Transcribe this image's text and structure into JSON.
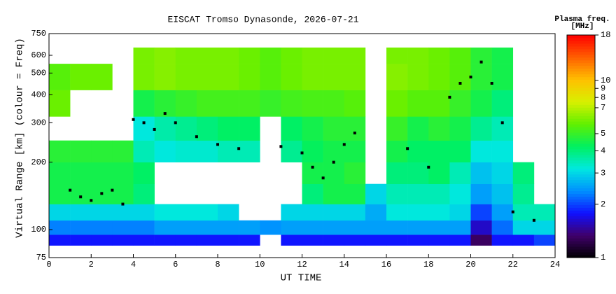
{
  "chart_data": {
    "type": "heatmap",
    "title": "EISCAT Tromso Dynasonde, 2026-07-21",
    "x_label": "UT TIME",
    "y_label": "Virtual Range [km] (colour = Freq)",
    "colorbar_title": [
      "Plasma freq.",
      "[MHz]"
    ],
    "xlim": [
      0,
      24
    ],
    "xticks": [
      0,
      2,
      4,
      6,
      8,
      10,
      12,
      14,
      16,
      18,
      20,
      22,
      24
    ],
    "ylim": [
      75,
      750
    ],
    "yticks": [
      75,
      100,
      200,
      300,
      400,
      500,
      600,
      750
    ],
    "log_y": true,
    "clim": [
      1,
      18
    ],
    "cticks": [
      1,
      2,
      3,
      4,
      5,
      7,
      8,
      9,
      10,
      18
    ],
    "log_c": true,
    "colormap": [
      "#000000",
      "#40006a",
      "#1010ff",
      "#0090ff",
      "#00e8e0",
      "#00f060",
      "#60f000",
      "#d8f000",
      "#ffc000",
      "#ff6000",
      "#ff0000"
    ],
    "x_edges": [
      0,
      1,
      2,
      3,
      4,
      5,
      6,
      7,
      8,
      9,
      10,
      11,
      12,
      13,
      14,
      15,
      16,
      17,
      18,
      19,
      20,
      21,
      22,
      23,
      24
    ],
    "y_edges": [
      85,
      95,
      110,
      130,
      160,
      200,
      250,
      320,
      420,
      550,
      650
    ],
    "z": [
      [
        1.8,
        1.8,
        1.8,
        1.8,
        1.8,
        1.8,
        1.8,
        1.8,
        1.8,
        1.8,
        null,
        1.8,
        1.8,
        1.8,
        1.8,
        1.8,
        1.8,
        1.8,
        1.8,
        1.8,
        1.3,
        1.8,
        1.8,
        2.0
      ],
      [
        2.3,
        2.3,
        2.3,
        2.3,
        2.3,
        2.5,
        2.5,
        2.5,
        2.5,
        2.5,
        2.4,
        2.5,
        2.5,
        2.5,
        2.5,
        2.5,
        2.5,
        2.5,
        2.5,
        2.5,
        1.6,
        2.2,
        3.0,
        3.0
      ],
      [
        3.0,
        3.0,
        3.0,
        3.0,
        3.0,
        3.2,
        3.2,
        3.2,
        3.0,
        null,
        null,
        3.0,
        3.0,
        3.0,
        3.0,
        2.6,
        3.2,
        3.2,
        3.2,
        3.0,
        2.0,
        2.5,
        3.5,
        3.5
      ],
      [
        4.5,
        4.5,
        4.5,
        4.5,
        4.0,
        null,
        null,
        null,
        null,
        null,
        null,
        null,
        4.0,
        4.5,
        4.5,
        3.0,
        3.5,
        3.5,
        3.5,
        3.2,
        2.5,
        2.8,
        3.8,
        null
      ],
      [
        4.5,
        4.5,
        4.5,
        4.5,
        4.2,
        null,
        null,
        null,
        null,
        null,
        null,
        null,
        4.5,
        4.5,
        4.8,
        null,
        4.0,
        4.0,
        4.2,
        3.5,
        2.8,
        3.0,
        4.0,
        null
      ],
      [
        4.8,
        4.8,
        4.8,
        4.8,
        3.5,
        3.2,
        3.3,
        3.3,
        3.5,
        3.5,
        null,
        3.8,
        4.3,
        4.5,
        4.5,
        null,
        4.5,
        4.2,
        4.2,
        4.2,
        3.2,
        3.2,
        null,
        null
      ],
      [
        null,
        null,
        null,
        null,
        3.2,
        3.6,
        3.8,
        4.0,
        4.2,
        4.2,
        null,
        4.2,
        4.5,
        4.8,
        4.8,
        null,
        5.0,
        4.5,
        4.8,
        4.5,
        3.8,
        3.5,
        null,
        null
      ],
      [
        5.8,
        null,
        null,
        null,
        4.5,
        4.8,
        5.0,
        5.2,
        5.2,
        5.2,
        5.0,
        5.2,
        5.3,
        5.3,
        5.5,
        null,
        5.8,
        5.5,
        5.5,
        5.0,
        4.5,
        4.0,
        null,
        null
      ],
      [
        5.5,
        5.8,
        5.8,
        null,
        6.0,
        6.2,
        6.0,
        6.0,
        6.0,
        5.8,
        5.5,
        5.8,
        6.0,
        6.0,
        6.0,
        null,
        6.2,
        6.0,
        5.8,
        5.5,
        4.8,
        4.5,
        null,
        null
      ],
      [
        null,
        null,
        null,
        null,
        6.0,
        6.2,
        6.0,
        6.0,
        6.0,
        5.8,
        5.5,
        5.8,
        6.0,
        6.0,
        6.0,
        null,
        6.0,
        6.0,
        5.8,
        5.5,
        4.8,
        4.5,
        null,
        null
      ]
    ],
    "trace": {
      "x": [
        1,
        1.5,
        2,
        2.5,
        3,
        3.5,
        4,
        4.5,
        5,
        5.5,
        6,
        7,
        8,
        9,
        11,
        12,
        12.5,
        13,
        13.5,
        14,
        14.5,
        17,
        18,
        19,
        19.5,
        20,
        20.5,
        21,
        21.5,
        22,
        23
      ],
      "y": [
        150,
        140,
        135,
        145,
        150,
        130,
        310,
        300,
        280,
        330,
        300,
        260,
        240,
        230,
        235,
        220,
        190,
        170,
        200,
        240,
        270,
        230,
        190,
        390,
        450,
        480,
        560,
        450,
        300,
        120,
        110
      ]
    }
  }
}
